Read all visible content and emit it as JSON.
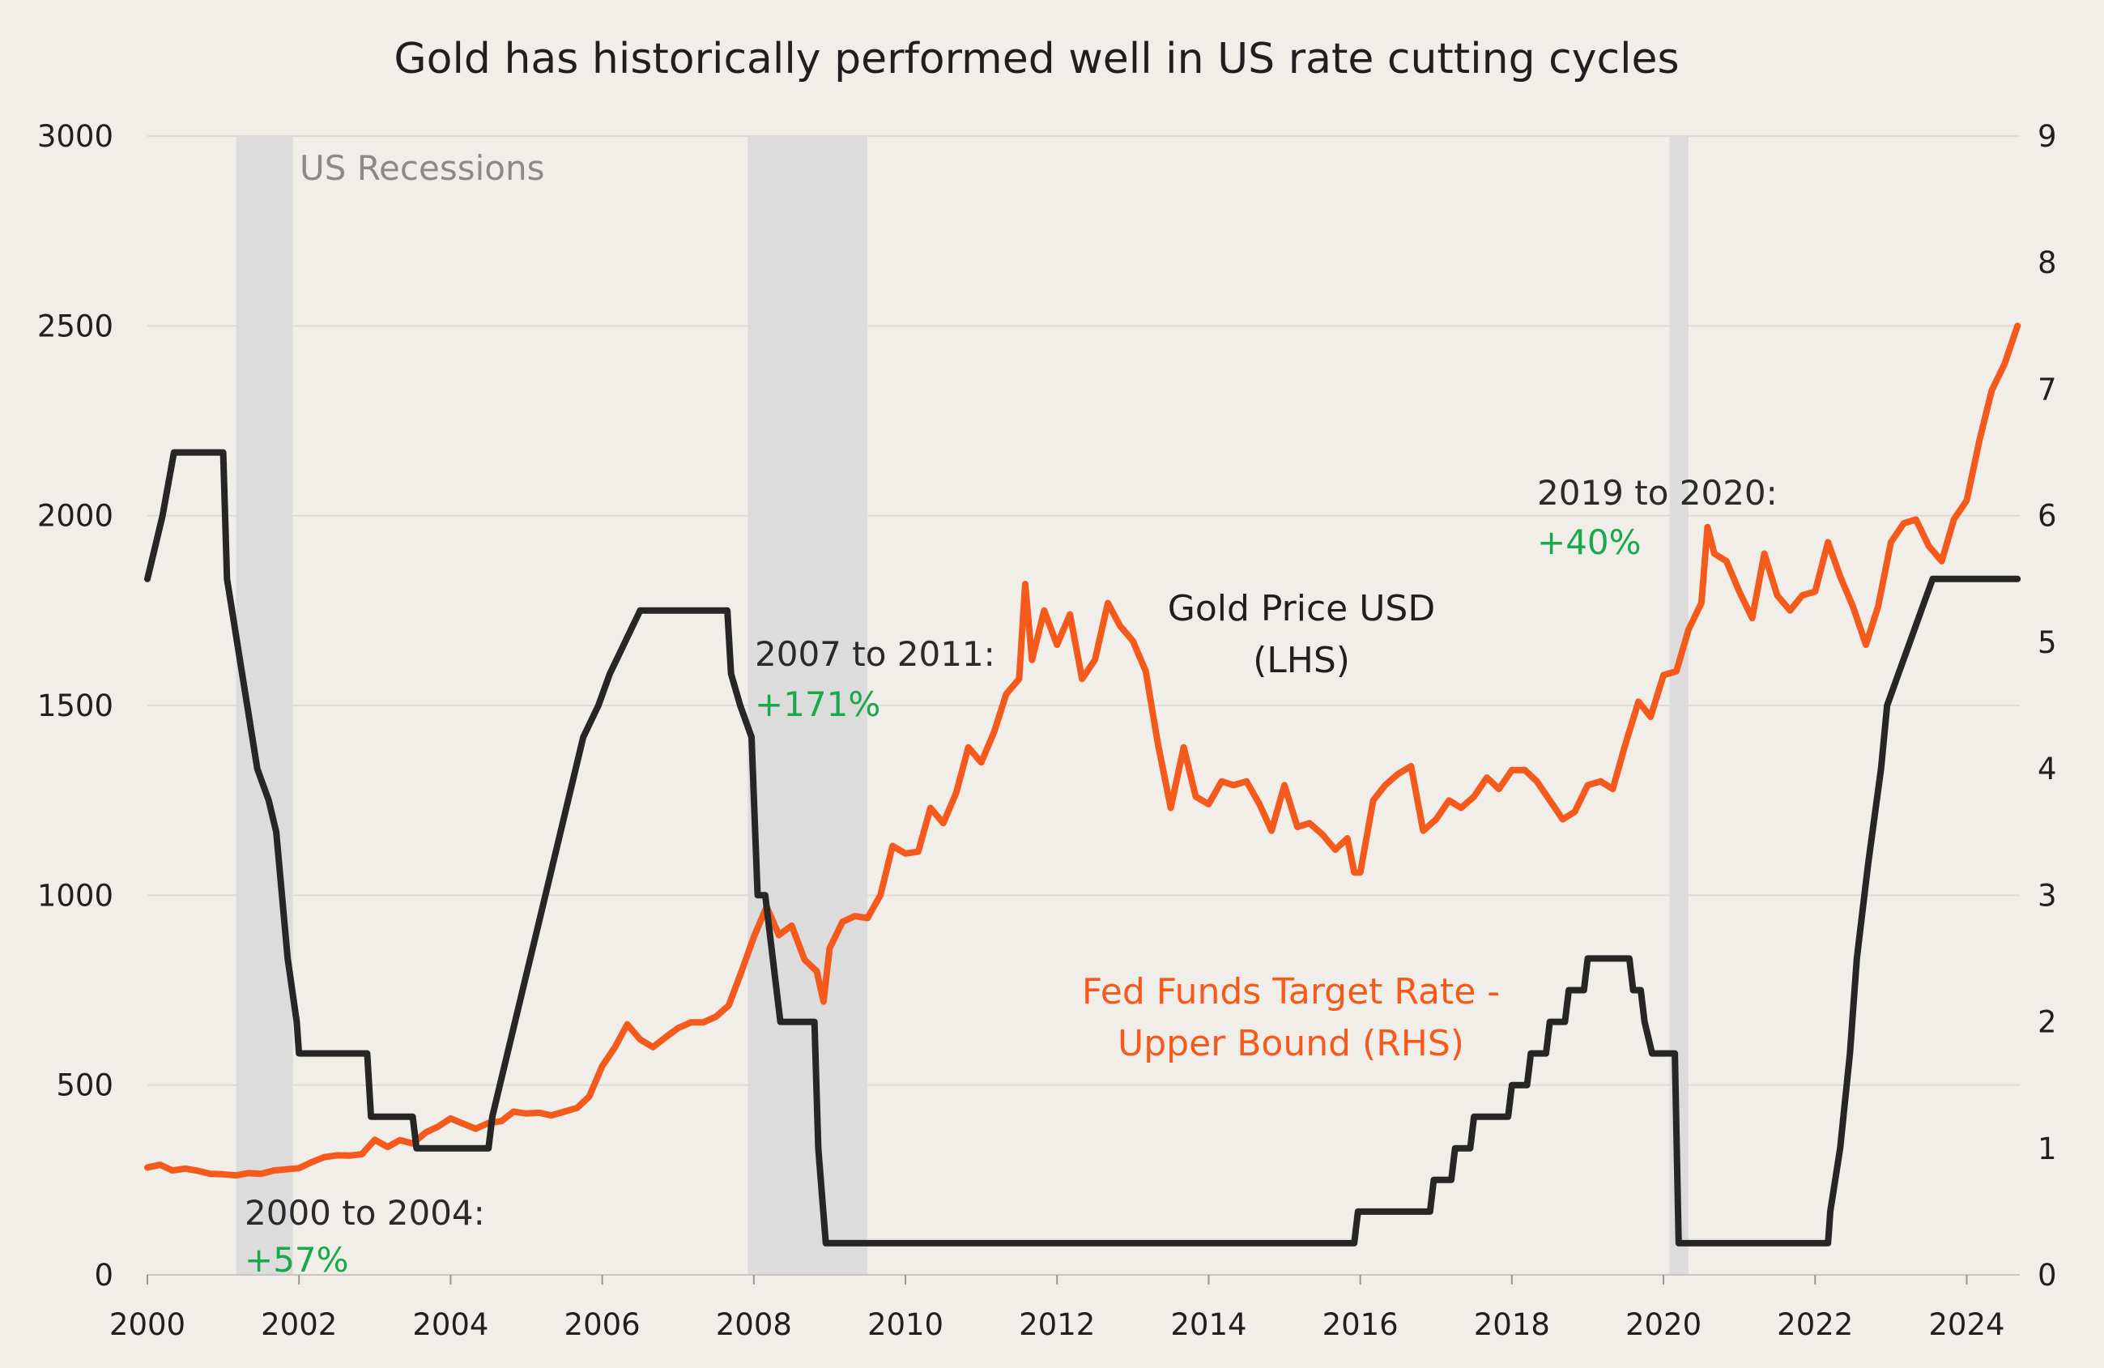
{
  "chart_data": {
    "type": "line",
    "title": "Gold has historically performed well in US rate cutting cycles",
    "x_ticks": [
      "2000",
      "2002",
      "2004",
      "2006",
      "2008",
      "2010",
      "2012",
      "2014",
      "2016",
      "2018",
      "2020",
      "2022",
      "2024"
    ],
    "xlim": [
      2000,
      2024.7
    ],
    "y_left": {
      "ticks": [
        "0",
        "500",
        "1000",
        "1500",
        "2000",
        "2500",
        "3000"
      ],
      "lim": [
        0,
        3000
      ]
    },
    "y_right": {
      "ticks": [
        "0",
        "1",
        "2",
        "3",
        "4",
        "5",
        "6",
        "7",
        "8",
        "9"
      ],
      "lim": [
        0,
        9
      ]
    },
    "grid": true,
    "colors": {
      "gold": "#f45a1c",
      "fed": "#262626",
      "recession": "#dcdcdc",
      "positive": "#19a84b",
      "background": "#f1eeea"
    },
    "recessions": [
      [
        2001.17,
        2001.92
      ],
      [
        2007.92,
        2009.5
      ],
      [
        2020.08,
        2020.33
      ]
    ],
    "recession_label": "US Recessions",
    "series": [
      {
        "name": "Gold Price USD (LHS)",
        "axis": "left",
        "points": [
          [
            2000.0,
            283
          ],
          [
            2000.17,
            290
          ],
          [
            2000.33,
            275
          ],
          [
            2000.5,
            280
          ],
          [
            2000.67,
            274
          ],
          [
            2000.83,
            266
          ],
          [
            2001.0,
            265
          ],
          [
            2001.17,
            262
          ],
          [
            2001.33,
            268
          ],
          [
            2001.5,
            266
          ],
          [
            2001.67,
            275
          ],
          [
            2001.83,
            278
          ],
          [
            2002.0,
            281
          ],
          [
            2002.17,
            297
          ],
          [
            2002.33,
            310
          ],
          [
            2002.5,
            315
          ],
          [
            2002.67,
            314
          ],
          [
            2002.83,
            318
          ],
          [
            2003.0,
            356
          ],
          [
            2003.17,
            337
          ],
          [
            2003.33,
            355
          ],
          [
            2003.5,
            346
          ],
          [
            2003.67,
            375
          ],
          [
            2003.83,
            390
          ],
          [
            2004.0,
            412
          ],
          [
            2004.17,
            398
          ],
          [
            2004.33,
            385
          ],
          [
            2004.5,
            400
          ],
          [
            2004.67,
            405
          ],
          [
            2004.83,
            430
          ],
          [
            2005.0,
            425
          ],
          [
            2005.17,
            427
          ],
          [
            2005.33,
            420
          ],
          [
            2005.5,
            430
          ],
          [
            2005.67,
            440
          ],
          [
            2005.83,
            470
          ],
          [
            2006.0,
            550
          ],
          [
            2006.17,
            600
          ],
          [
            2006.33,
            660
          ],
          [
            2006.5,
            620
          ],
          [
            2006.67,
            600
          ],
          [
            2006.83,
            625
          ],
          [
            2007.0,
            650
          ],
          [
            2007.17,
            665
          ],
          [
            2007.33,
            665
          ],
          [
            2007.5,
            680
          ],
          [
            2007.67,
            710
          ],
          [
            2007.83,
            795
          ],
          [
            2008.0,
            890
          ],
          [
            2008.17,
            970
          ],
          [
            2008.33,
            895
          ],
          [
            2008.5,
            920
          ],
          [
            2008.67,
            830
          ],
          [
            2008.83,
            800
          ],
          [
            2008.92,
            720
          ],
          [
            2009.0,
            860
          ],
          [
            2009.17,
            930
          ],
          [
            2009.33,
            945
          ],
          [
            2009.5,
            940
          ],
          [
            2009.67,
            1000
          ],
          [
            2009.83,
            1130
          ],
          [
            2010.0,
            1110
          ],
          [
            2010.17,
            1115
          ],
          [
            2010.33,
            1230
          ],
          [
            2010.5,
            1190
          ],
          [
            2010.67,
            1270
          ],
          [
            2010.83,
            1390
          ],
          [
            2011.0,
            1350
          ],
          [
            2011.17,
            1430
          ],
          [
            2011.33,
            1530
          ],
          [
            2011.5,
            1570
          ],
          [
            2011.58,
            1820
          ],
          [
            2011.67,
            1620
          ],
          [
            2011.83,
            1750
          ],
          [
            2012.0,
            1660
          ],
          [
            2012.17,
            1740
          ],
          [
            2012.33,
            1570
          ],
          [
            2012.5,
            1620
          ],
          [
            2012.67,
            1770
          ],
          [
            2012.83,
            1710
          ],
          [
            2013.0,
            1670
          ],
          [
            2013.17,
            1590
          ],
          [
            2013.33,
            1400
          ],
          [
            2013.5,
            1230
          ],
          [
            2013.67,
            1390
          ],
          [
            2013.83,
            1260
          ],
          [
            2014.0,
            1240
          ],
          [
            2014.17,
            1300
          ],
          [
            2014.33,
            1290
          ],
          [
            2014.5,
            1300
          ],
          [
            2014.67,
            1240
          ],
          [
            2014.83,
            1170
          ],
          [
            2015.0,
            1290
          ],
          [
            2015.17,
            1180
          ],
          [
            2015.33,
            1190
          ],
          [
            2015.5,
            1160
          ],
          [
            2015.67,
            1120
          ],
          [
            2015.83,
            1150
          ],
          [
            2015.92,
            1060
          ],
          [
            2016.0,
            1060
          ],
          [
            2016.17,
            1250
          ],
          [
            2016.33,
            1290
          ],
          [
            2016.5,
            1320
          ],
          [
            2016.67,
            1340
          ],
          [
            2016.83,
            1170
          ],
          [
            2017.0,
            1200
          ],
          [
            2017.17,
            1250
          ],
          [
            2017.33,
            1230
          ],
          [
            2017.5,
            1260
          ],
          [
            2017.67,
            1310
          ],
          [
            2017.83,
            1280
          ],
          [
            2018.0,
            1330
          ],
          [
            2018.17,
            1330
          ],
          [
            2018.33,
            1300
          ],
          [
            2018.5,
            1250
          ],
          [
            2018.67,
            1200
          ],
          [
            2018.83,
            1220
          ],
          [
            2019.0,
            1290
          ],
          [
            2019.17,
            1300
          ],
          [
            2019.33,
            1280
          ],
          [
            2019.5,
            1400
          ],
          [
            2019.67,
            1510
          ],
          [
            2019.83,
            1470
          ],
          [
            2020.0,
            1580
          ],
          [
            2020.17,
            1590
          ],
          [
            2020.33,
            1700
          ],
          [
            2020.5,
            1770
          ],
          [
            2020.58,
            1970
          ],
          [
            2020.67,
            1900
          ],
          [
            2020.83,
            1880
          ],
          [
            2021.0,
            1800
          ],
          [
            2021.17,
            1730
          ],
          [
            2021.33,
            1900
          ],
          [
            2021.5,
            1790
          ],
          [
            2021.67,
            1750
          ],
          [
            2021.83,
            1790
          ],
          [
            2022.0,
            1800
          ],
          [
            2022.17,
            1930
          ],
          [
            2022.33,
            1840
          ],
          [
            2022.5,
            1760
          ],
          [
            2022.67,
            1660
          ],
          [
            2022.83,
            1760
          ],
          [
            2023.0,
            1930
          ],
          [
            2023.17,
            1980
          ],
          [
            2023.33,
            1990
          ],
          [
            2023.5,
            1920
          ],
          [
            2023.67,
            1880
          ],
          [
            2023.83,
            1990
          ],
          [
            2024.0,
            2040
          ],
          [
            2024.17,
            2200
          ],
          [
            2024.33,
            2330
          ],
          [
            2024.5,
            2400
          ],
          [
            2024.67,
            2500
          ]
        ]
      },
      {
        "name": "Fed Funds Target Rate - Upper Bound (RHS)",
        "axis": "right",
        "points": [
          [
            2000.0,
            5.5
          ],
          [
            2000.1,
            5.75
          ],
          [
            2000.2,
            6.0
          ],
          [
            2000.35,
            6.5
          ],
          [
            2001.0,
            6.5
          ],
          [
            2001.05,
            5.5
          ],
          [
            2001.25,
            4.75
          ],
          [
            2001.45,
            4.0
          ],
          [
            2001.6,
            3.75
          ],
          [
            2001.7,
            3.5
          ],
          [
            2001.85,
            2.5
          ],
          [
            2001.97,
            2.0
          ],
          [
            2002.0,
            1.75
          ],
          [
            2002.9,
            1.75
          ],
          [
            2002.95,
            1.25
          ],
          [
            2003.5,
            1.25
          ],
          [
            2003.55,
            1.0
          ],
          [
            2004.5,
            1.0
          ],
          [
            2004.55,
            1.25
          ],
          [
            2004.75,
            1.75
          ],
          [
            2004.95,
            2.25
          ],
          [
            2005.15,
            2.75
          ],
          [
            2005.35,
            3.25
          ],
          [
            2005.55,
            3.75
          ],
          [
            2005.75,
            4.25
          ],
          [
            2005.95,
            4.5
          ],
          [
            2006.1,
            4.75
          ],
          [
            2006.3,
            5.0
          ],
          [
            2006.5,
            5.25
          ],
          [
            2007.65,
            5.25
          ],
          [
            2007.7,
            4.75
          ],
          [
            2007.82,
            4.5
          ],
          [
            2007.97,
            4.25
          ],
          [
            2008.05,
            3.0
          ],
          [
            2008.15,
            3.0
          ],
          [
            2008.3,
            2.25
          ],
          [
            2008.35,
            2.0
          ],
          [
            2008.8,
            2.0
          ],
          [
            2008.85,
            1.0
          ],
          [
            2008.95,
            0.25
          ],
          [
            2015.92,
            0.25
          ],
          [
            2015.97,
            0.5
          ],
          [
            2016.92,
            0.5
          ],
          [
            2016.97,
            0.75
          ],
          [
            2017.2,
            0.75
          ],
          [
            2017.25,
            1.0
          ],
          [
            2017.45,
            1.0
          ],
          [
            2017.5,
            1.25
          ],
          [
            2017.95,
            1.25
          ],
          [
            2018.0,
            1.5
          ],
          [
            2018.2,
            1.5
          ],
          [
            2018.25,
            1.75
          ],
          [
            2018.45,
            1.75
          ],
          [
            2018.5,
            2.0
          ],
          [
            2018.7,
            2.0
          ],
          [
            2018.75,
            2.25
          ],
          [
            2018.95,
            2.25
          ],
          [
            2019.0,
            2.5
          ],
          [
            2019.55,
            2.5
          ],
          [
            2019.6,
            2.25
          ],
          [
            2019.7,
            2.25
          ],
          [
            2019.75,
            2.0
          ],
          [
            2019.85,
            1.75
          ],
          [
            2020.15,
            1.75
          ],
          [
            2020.2,
            0.25
          ],
          [
            2022.17,
            0.25
          ],
          [
            2022.2,
            0.5
          ],
          [
            2022.33,
            1.0
          ],
          [
            2022.46,
            1.75
          ],
          [
            2022.55,
            2.5
          ],
          [
            2022.7,
            3.25
          ],
          [
            2022.87,
            4.0
          ],
          [
            2022.95,
            4.5
          ],
          [
            2023.1,
            4.75
          ],
          [
            2023.25,
            5.0
          ],
          [
            2023.4,
            5.25
          ],
          [
            2023.55,
            5.5
          ],
          [
            2024.67,
            5.5
          ]
        ]
      }
    ],
    "annotations": [
      {
        "id": "cycle-2000",
        "text": "2000 to 2004:",
        "value": "+57%"
      },
      {
        "id": "cycle-2007",
        "text": "2007 to 2011:",
        "value": "+171%"
      },
      {
        "id": "cycle-2019",
        "text": "2019 to 2020:",
        "value": "+40%"
      }
    ],
    "series_labels": {
      "gold_line1": "Gold Price USD",
      "gold_line2": "(LHS)",
      "fed_line1": "Fed Funds Target Rate -",
      "fed_line2": "Upper Bound (RHS)"
    }
  }
}
